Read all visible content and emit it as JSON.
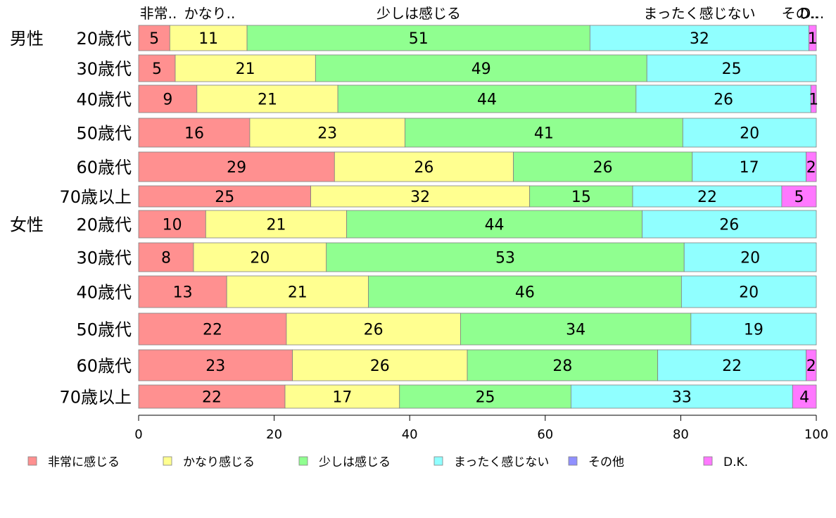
{
  "chart_data": {
    "type": "bar",
    "orientation": "horizontal",
    "stacked": true,
    "xlim": [
      0,
      100
    ],
    "xticks": [
      "0",
      "20",
      "40",
      "60",
      "80",
      "100"
    ],
    "grid": false,
    "legend_position": "bottom",
    "top_labels": [
      "非常..",
      "かなり..",
      "少しは感じる",
      "まったく感じない",
      "その..",
      "D..."
    ],
    "groups": [
      {
        "label": "男性",
        "row_start": 0
      },
      {
        "label": "女性",
        "row_start": 6
      }
    ],
    "categories": [
      "20歳代",
      "30歳代",
      "40歳代",
      "50歳代",
      "60歳代",
      "70歳以上",
      "20歳代",
      "30歳代",
      "40歳代",
      "50歳代",
      "60歳代",
      "70歳以上"
    ],
    "series": [
      {
        "name": "非常に感じる",
        "color": "#ff9090",
        "values": [
          4.6,
          5.4,
          8.6,
          16.4,
          28.9,
          25.4,
          9.9,
          8.1,
          13.0,
          21.8,
          22.7,
          21.6
        ]
      },
      {
        "name": "かなり感じる",
        "color": "#ffff90",
        "values": [
          11.4,
          20.7,
          20.8,
          22.9,
          26.4,
          32.3,
          20.8,
          19.6,
          20.9,
          25.7,
          25.8,
          16.9
        ]
      },
      {
        "name": "少しは感じる",
        "color": "#90ff90",
        "values": [
          50.6,
          48.9,
          44.0,
          41.0,
          26.4,
          15.2,
          43.6,
          52.8,
          46.2,
          34.0,
          28.1,
          25.3
        ]
      },
      {
        "name": "まったく感じない",
        "color": "#90ffff",
        "values": [
          32.3,
          25.0,
          25.8,
          19.7,
          16.8,
          22.0,
          25.7,
          19.5,
          19.9,
          18.5,
          21.9,
          32.7
        ]
      },
      {
        "name": "その他",
        "color": "#9090ff",
        "values": [
          0,
          0,
          0,
          0,
          0,
          0,
          0,
          0,
          0,
          0,
          0,
          0
        ]
      },
      {
        "name": "D.K.",
        "color": "#ff78ff",
        "values": [
          1.1,
          0,
          0.8,
          0,
          1.5,
          5.1,
          0,
          0,
          0,
          0,
          1.5,
          3.5
        ]
      }
    ],
    "labels": [
      [
        "5",
        "11",
        "51",
        "32",
        "",
        "1"
      ],
      [
        "5",
        "21",
        "49",
        "25",
        "",
        ""
      ],
      [
        "9",
        "21",
        "44",
        "26",
        "",
        "1"
      ],
      [
        "16",
        "23",
        "41",
        "20",
        "",
        ""
      ],
      [
        "29",
        "26",
        "26",
        "17",
        "",
        "2"
      ],
      [
        "25",
        "32",
        "15",
        "22",
        "",
        "5"
      ],
      [
        "10",
        "21",
        "44",
        "26",
        "",
        ""
      ],
      [
        "8",
        "20",
        "53",
        "20",
        "",
        ""
      ],
      [
        "13",
        "21",
        "46",
        "20",
        "",
        ""
      ],
      [
        "22",
        "26",
        "34",
        "19",
        "",
        ""
      ],
      [
        "23",
        "26",
        "28",
        "22",
        "",
        "2"
      ],
      [
        "22",
        "17",
        "25",
        "33",
        "",
        "4"
      ]
    ]
  }
}
